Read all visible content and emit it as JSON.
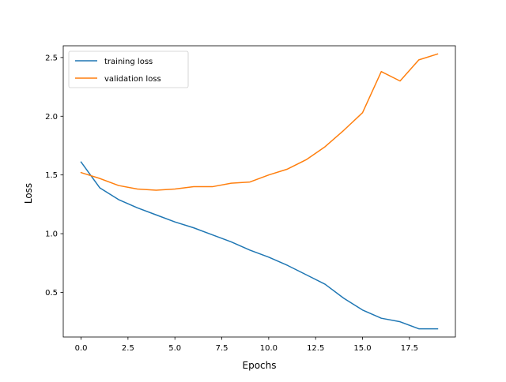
{
  "chart_data": {
    "type": "line",
    "title": "",
    "xlabel": "Epochs",
    "ylabel": "Loss",
    "xlim": [
      -0.95,
      19.95
    ],
    "ylim": [
      0.12,
      2.6
    ],
    "grid": false,
    "legend_position": "top-left",
    "x_ticks": [
      0,
      2.5,
      5,
      7.5,
      10,
      12.5,
      15,
      17.5
    ],
    "x_tick_labels": [
      "0.0",
      "2.5",
      "5.0",
      "7.5",
      "10.0",
      "12.5",
      "15.0",
      "17.5"
    ],
    "y_ticks": [
      0.5,
      1.0,
      1.5,
      2.0,
      2.5
    ],
    "y_tick_labels": [
      "0.5",
      "1.0",
      "1.5",
      "2.0",
      "2.5"
    ],
    "x": [
      0,
      1,
      2,
      3,
      4,
      5,
      6,
      7,
      8,
      9,
      10,
      11,
      12,
      13,
      14,
      15,
      16,
      17,
      18,
      19
    ],
    "series": [
      {
        "name": "training loss",
        "color": "#1f77b4",
        "values": [
          1.61,
          1.39,
          1.29,
          1.22,
          1.16,
          1.1,
          1.05,
          0.99,
          0.93,
          0.86,
          0.8,
          0.73,
          0.65,
          0.57,
          0.45,
          0.35,
          0.28,
          0.25,
          0.19,
          0.19
        ]
      },
      {
        "name": "validation loss",
        "color": "#ff7f0e",
        "values": [
          1.52,
          1.47,
          1.41,
          1.38,
          1.37,
          1.38,
          1.4,
          1.4,
          1.43,
          1.44,
          1.5,
          1.55,
          1.63,
          1.74,
          1.88,
          2.03,
          2.38,
          2.3,
          2.48,
          2.53
        ]
      }
    ]
  }
}
